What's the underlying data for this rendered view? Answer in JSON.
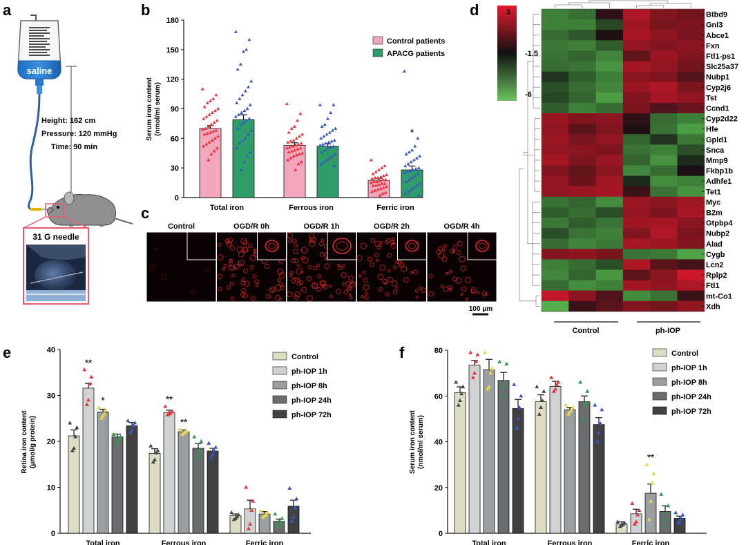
{
  "colors": {
    "control_pink": "#f2a7bd",
    "apacg_green": "#2e9d67",
    "tri_red": "#e8323c",
    "tri_blue": "#3a55c8",
    "tri_yellow": "#e9d84a",
    "tri_green": "#2f9b4a",
    "tri_black": "#444444",
    "heat_high": "#d4182a",
    "heat_mid": "#111111",
    "heat_low": "#56b84e",
    "bar_control": "#dedcc2",
    "bar_1h": "#cfd2d3",
    "bar_8h": "#9a9ea1",
    "bar_24h": "#6a6d6f",
    "bar_72h": "#3f4143"
  },
  "panel_labels": {
    "a": "a",
    "b": "b",
    "c": "c",
    "d": "d",
    "e": "e",
    "f": "f"
  },
  "panel_a": {
    "bag_label": "saline",
    "height": "Height: 162 cm",
    "pressure": "Pressure: 120 mmHg",
    "time": "Time: 90 min",
    "needle": "31 G needle"
  },
  "panel_c": {
    "titles": [
      "Control",
      "OGD/R 0h",
      "OGD/R 1h",
      "OGD/R 2h",
      "OGD/R 4h"
    ],
    "scale_bar": "100 μm"
  },
  "chart_data": [
    {
      "panel": "b",
      "type": "bar",
      "ylabel": [
        "Serum iron content",
        "(nmol/ml serum)"
      ],
      "ylim": [
        0,
        180
      ],
      "yticks": [
        0,
        30,
        60,
        90,
        120,
        150,
        180
      ],
      "categories": [
        "Total iron",
        "Ferrous iron",
        "Ferric iron"
      ],
      "legend_position": "top-right",
      "series": [
        {
          "name": "Control patients",
          "values": [
            70,
            53,
            17.5
          ],
          "errors": [
            3,
            2.5,
            2
          ],
          "color": "#f2a7bd",
          "point_color": "#e8323c"
        },
        {
          "name": "APACG patients",
          "values": [
            79,
            52,
            28
          ],
          "errors": [
            5,
            2.5,
            4
          ],
          "color": "#2e9d67",
          "point_color": "#3a55c8"
        }
      ],
      "points": [
        [
          [
            110,
            104,
            100,
            98,
            96,
            92,
            90,
            88,
            86,
            84,
            82,
            80,
            78,
            76,
            74,
            72,
            70,
            69,
            68,
            67,
            66,
            65,
            64,
            62,
            60,
            58,
            56,
            54,
            52,
            50,
            47,
            44,
            38
          ],
          [
            168,
            160,
            150,
            148,
            135,
            130,
            118,
            112,
            108,
            104,
            100,
            96,
            94,
            90,
            88,
            86,
            84,
            82,
            80,
            78,
            76,
            74,
            70,
            68,
            64,
            60,
            58,
            55,
            50,
            46,
            42,
            36,
            28
          ]
        ],
        [
          [
            95,
            85,
            78,
            72,
            70,
            66,
            64,
            62,
            60,
            58,
            57,
            56,
            55,
            54,
            53,
            52,
            51,
            50,
            50,
            49,
            48,
            47,
            46,
            45,
            44,
            43,
            42,
            40,
            38,
            36,
            34,
            28
          ],
          [
            94,
            94,
            86,
            80,
            74,
            72,
            70,
            68,
            66,
            64,
            62,
            60,
            58,
            57,
            56,
            55,
            54,
            53,
            52,
            51,
            50,
            48,
            46,
            44,
            42,
            40,
            38,
            36,
            34,
            32
          ]
        ],
        [
          [
            38,
            32,
            30,
            28,
            26,
            24,
            23,
            22,
            21,
            20,
            20,
            19,
            18,
            18,
            17,
            16,
            16,
            15,
            14,
            14,
            13,
            12,
            12,
            11,
            10,
            9,
            8,
            7,
            6,
            5,
            4,
            2
          ],
          [
            128,
            60,
            52,
            48,
            46,
            44,
            42,
            40,
            38,
            36,
            34,
            32,
            30,
            29,
            28,
            27,
            26,
            25,
            24,
            22,
            20,
            18,
            16,
            14,
            12,
            10,
            8,
            6,
            4,
            2
          ]
        ]
      ],
      "annotations": [
        {
          "category": "Ferric iron",
          "text": "*"
        }
      ]
    },
    {
      "panel": "e",
      "type": "bar",
      "ylabel": [
        "Retina iron content",
        "(μmol/g protein)"
      ],
      "ylim": [
        0,
        40
      ],
      "yticks": [
        0,
        10,
        20,
        30,
        40
      ],
      "categories": [
        "Total iron",
        "Ferrous iron",
        "Ferric iron"
      ],
      "legend_position": "top-right",
      "series": [
        {
          "name": "Control",
          "values": [
            21.2,
            17.4,
            3.8
          ],
          "errors": [
            1.3,
            1.0,
            0.4
          ],
          "color": "#dedcc2",
          "point_color": "#444444"
        },
        {
          "name": "ph-IOP 1h",
          "values": [
            31.6,
            26.3,
            5.3
          ],
          "errors": [
            1.0,
            0.5,
            1.9
          ],
          "color": "#cfd2d3",
          "point_color": "#e8323c"
        },
        {
          "name": "ph-IOP 8h",
          "values": [
            26.4,
            22.1,
            4.2
          ],
          "errors": [
            0.6,
            0.4,
            0.5
          ],
          "color": "#9a9ea1",
          "point_color": "#e9d84a"
        },
        {
          "name": "ph-IOP 24h",
          "values": [
            21.0,
            18.5,
            2.6
          ],
          "errors": [
            0.6,
            1.0,
            0.5
          ],
          "color": "#6a6d6f",
          "point_color": "#2f9b4a"
        },
        {
          "name": "ph-IOP 72h",
          "values": [
            23.4,
            17.9,
            5.9
          ],
          "errors": [
            0.7,
            0.6,
            1.3
          ],
          "color": "#3f4143",
          "point_color": "#3a55c8"
        }
      ],
      "points": [
        [
          [
            24,
            23,
            21,
            18.5,
            18
          ],
          [
            35.6,
            34,
            32.5,
            29,
            28
          ],
          [
            27.4,
            26.8,
            26,
            25.5,
            25
          ],
          [
            21.5,
            21,
            20.5,
            20.2,
            19.5
          ],
          [
            24.5,
            24,
            23.5,
            22.5,
            22
          ]
        ],
        [
          [
            19,
            18,
            17.5,
            16,
            15.5
          ],
          [
            27.6,
            26.5,
            26.2,
            26,
            25.8
          ],
          [
            22.6,
            22.3,
            22,
            21.8,
            21.5
          ],
          [
            21,
            20,
            18,
            17,
            16.5
          ],
          [
            19.6,
            18.7,
            18,
            17.2,
            16.5
          ]
        ],
        [
          [
            4.5,
            4,
            3.6,
            3.2,
            3
          ],
          [
            10,
            7,
            5,
            2,
            1
          ],
          [
            4.8,
            4.5,
            4,
            3.8,
            3.5
          ],
          [
            4.2,
            3.2,
            2.5,
            1.8,
            1.5
          ],
          [
            9.8,
            7.5,
            5.5,
            3.5,
            2.6
          ]
        ]
      ],
      "annotations": [
        {
          "category": "Total iron",
          "series": "ph-IOP 1h",
          "text": "**"
        },
        {
          "category": "Total iron",
          "series": "ph-IOP 8h",
          "text": "*"
        },
        {
          "category": "Ferrous iron",
          "series": "ph-IOP 1h",
          "text": "**"
        },
        {
          "category": "Ferrous iron",
          "series": "ph-IOP 8h",
          "text": "**"
        }
      ]
    },
    {
      "panel": "f",
      "type": "bar",
      "ylabel": [
        "Serum iron content",
        "(nmol/ml serum)"
      ],
      "ylim": [
        0,
        80
      ],
      "yticks": [
        0,
        20,
        40,
        60,
        80
      ],
      "categories": [
        "Total iron",
        "Ferrous iron",
        "Ferric iron"
      ],
      "legend_position": "top-right",
      "series": [
        {
          "name": "Control",
          "values": [
            61.5,
            57.5,
            4.0
          ],
          "errors": [
            2.5,
            3.0,
            1.0
          ],
          "color": "#dedcc2",
          "point_color": "#444444"
        },
        {
          "name": "ph-IOP 1h",
          "values": [
            73.5,
            64.2,
            8.5
          ],
          "errors": [
            2.0,
            2.2,
            2.0
          ],
          "color": "#cfd2d3",
          "point_color": "#e8323c"
        },
        {
          "name": "ph-IOP 8h",
          "values": [
            71.5,
            54.0,
            17.5
          ],
          "errors": [
            4.5,
            1.0,
            4.0
          ],
          "color": "#9a9ea1",
          "point_color": "#e9d84a"
        },
        {
          "name": "ph-IOP 24h",
          "values": [
            66.8,
            57.5,
            9.5
          ],
          "errors": [
            3.5,
            2.5,
            2.5
          ],
          "color": "#6a6d6f",
          "point_color": "#2f9b4a"
        },
        {
          "name": "ph-IOP 72h",
          "values": [
            54.5,
            47.5,
            6.5
          ],
          "errors": [
            4.0,
            3.0,
            1.0
          ],
          "color": "#3f4143",
          "point_color": "#3a55c8"
        }
      ],
      "points": [
        [
          [
            66,
            64,
            61,
            58,
            56
          ],
          [
            79,
            78,
            75,
            70,
            68
          ],
          [
            79,
            72,
            70,
            64,
            63
          ],
          [
            75,
            74,
            66,
            64,
            60
          ],
          [
            65,
            60,
            55,
            50,
            46
          ]
        ],
        [
          [
            64,
            62,
            58,
            55,
            52
          ],
          [
            68,
            66,
            65,
            63,
            62
          ],
          [
            56,
            55,
            54,
            53,
            52
          ],
          [
            66,
            62,
            57,
            56,
            50
          ],
          [
            56,
            54,
            48,
            44,
            40
          ]
        ],
        [
          [
            5,
            4.5,
            4,
            3.5,
            3
          ],
          [
            13,
            10,
            8,
            5,
            4
          ],
          [
            30,
            26,
            22,
            14,
            6
          ],
          [
            17,
            12,
            9,
            6,
            3
          ],
          [
            9,
            8,
            6.5,
            5,
            4.5
          ]
        ]
      ],
      "annotations": [
        {
          "category": "Ferric iron",
          "series": "ph-IOP 8h",
          "text": "**"
        }
      ]
    },
    {
      "panel": "d",
      "type": "heatmap",
      "rows": [
        "Btbd9",
        "Gnl3",
        "Abce1",
        "Fxn",
        "Ftl1-ps1",
        "Slc25a37",
        "Nubp1",
        "Cyp2j6",
        "Tst",
        "Ccnd1",
        "Cyp2d22",
        "Hfe",
        "Gpld1",
        "Snca",
        "Mmp9",
        "Fkbp1b",
        "Adhfe1",
        "Tet1",
        "Myc",
        "B2m",
        "Gtpbp4",
        "Nubp2",
        "Alad",
        "Cygb",
        "Lcn2",
        "Rplp2",
        "Ftl1",
        "mt-Co1",
        "Xdh"
      ],
      "groups": [
        "Control",
        "ph-IOP"
      ],
      "colorbar_ticks": [
        "3",
        "-1.5",
        "-6"
      ],
      "scale_min": -6,
      "scale_max": 3,
      "values": [
        [
          -4,
          -3.5,
          -1.2,
          1.8,
          0.6,
          0.2
        ],
        [
          -4,
          -4,
          -2.4,
          1.4,
          0.3,
          0.4
        ],
        [
          -3.4,
          -2.8,
          -1.4,
          1.6,
          0.9,
          0.3
        ],
        [
          -3.8,
          -4,
          -3,
          1,
          0.6,
          0.8
        ],
        [
          -3.6,
          -3.2,
          -4.2,
          -0.2,
          1.2,
          0.6
        ],
        [
          -3.4,
          -3.6,
          -4.6,
          1.5,
          1,
          0.2
        ],
        [
          -2,
          -3,
          -4,
          0.8,
          0.5,
          -0.5
        ],
        [
          -2.6,
          -3.4,
          -4.2,
          1.2,
          1.8,
          0.4
        ],
        [
          -2.4,
          -3.2,
          -5,
          0.6,
          1.5,
          1
        ],
        [
          -3,
          -4,
          -3.4,
          0.4,
          -0.6,
          0
        ],
        [
          1.2,
          0.6,
          0.8,
          -1.2,
          -3.4,
          -4
        ],
        [
          1,
          -0.4,
          0.6,
          -1.4,
          -3.6,
          -5
        ],
        [
          1.2,
          0.3,
          1,
          -3.2,
          -2,
          -3.8
        ],
        [
          1,
          0.8,
          0.4,
          -3.6,
          -4,
          -2.6
        ],
        [
          1.5,
          0.4,
          1.2,
          -3.2,
          -4.6,
          -1.8
        ],
        [
          0.6,
          -0.2,
          0.8,
          -4.2,
          -3.4,
          -1.4
        ],
        [
          1,
          0,
          1.4,
          -1.8,
          -4.4,
          -4
        ],
        [
          1,
          1.2,
          1.6,
          -1,
          -3.6,
          -4.6
        ],
        [
          -3.6,
          -3.2,
          -4.4,
          1.2,
          0.8,
          1.4
        ],
        [
          -3,
          -3.4,
          -2.6,
          1,
          0.4,
          1.6
        ],
        [
          -3.8,
          -3,
          -3.6,
          1.4,
          1.6,
          0.8
        ],
        [
          -2.6,
          -3.6,
          -4,
          0.6,
          1.8,
          0.4
        ],
        [
          -3.4,
          -4.2,
          -3.8,
          1.6,
          1.2,
          0.6
        ],
        [
          0.6,
          0.9,
          0.3,
          -3.6,
          -3.8,
          -5.2
        ],
        [
          -4,
          -3.4,
          -2.6,
          1.8,
          -0.4,
          -0.8
        ],
        [
          -4.2,
          -3.2,
          -4.8,
          -0.4,
          0.8,
          2.8
        ],
        [
          -3.4,
          -4.4,
          -4,
          1.4,
          1,
          1.8
        ],
        [
          2.4,
          0.8,
          -0.6,
          -4.4,
          -3.6,
          -1
        ],
        [
          -5.6,
          -1,
          -0.4,
          0.6,
          0.2,
          1
        ]
      ]
    }
  ]
}
